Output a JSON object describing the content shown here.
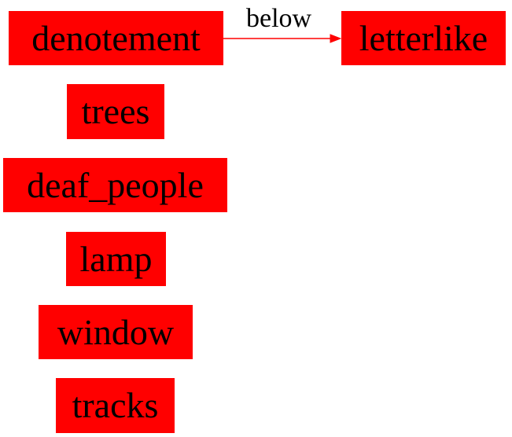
{
  "colors": {
    "node_fill": "#ff0000",
    "node_text": "#000000",
    "edge": "#ff0000",
    "edge_label_text": "#000000",
    "background": "#ffffff"
  },
  "nodes": [
    {
      "id": "denotement",
      "label": "denotement"
    },
    {
      "id": "letterlike",
      "label": "letterlike"
    },
    {
      "id": "trees",
      "label": "trees"
    },
    {
      "id": "deaf_people",
      "label": "deaf_people"
    },
    {
      "id": "lamp",
      "label": "lamp"
    },
    {
      "id": "window",
      "label": "window"
    },
    {
      "id": "tracks",
      "label": "tracks"
    }
  ],
  "edges": [
    {
      "from": "denotement",
      "to": "letterlike",
      "label": "below"
    }
  ]
}
